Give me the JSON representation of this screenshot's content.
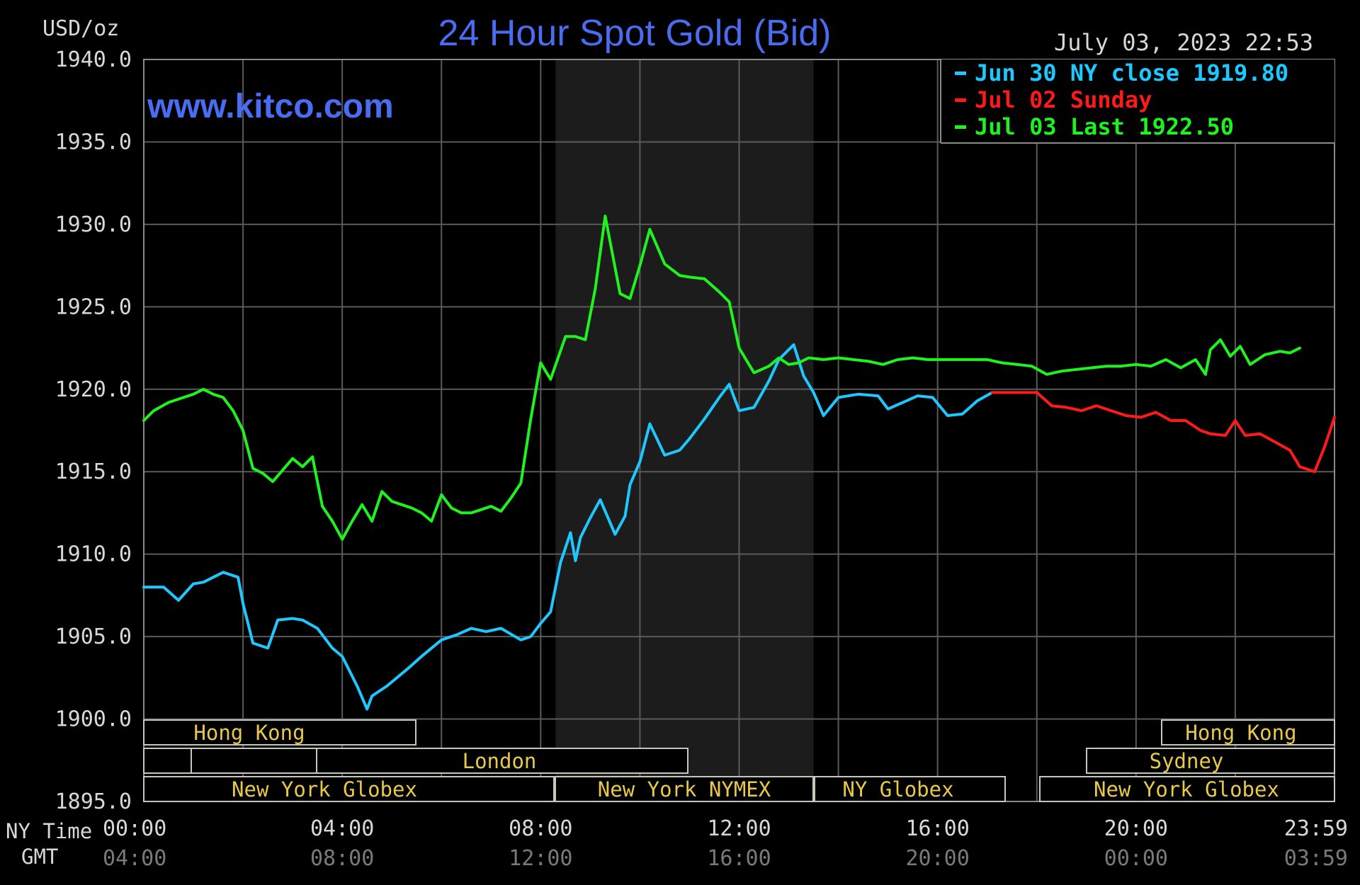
{
  "header": {
    "unit": "USD/oz",
    "title": "24 Hour Spot Gold (Bid)",
    "timestamp": "July 03, 2023 22:53",
    "watermark": "www.kitco.com"
  },
  "colors": {
    "background": "#000000",
    "grid": "#5a5a5a",
    "frame": "#8a8a8a",
    "nymex_shade": "#1c1c1c",
    "title": "#4a6cf0",
    "axis_text": "#d8d8d8",
    "gmt_text": "#7a7a7a",
    "session_text": "#e8c94a",
    "session_border": "#c8c8b8",
    "jun30": "#1ec8ff",
    "jul02": "#ff1a1a",
    "jul03": "#1ff21f"
  },
  "axis": {
    "y_ticks": [
      "1940.0",
      "1935.0",
      "1930.0",
      "1925.0",
      "1920.0",
      "1915.0",
      "1910.0",
      "1905.0",
      "1900.0",
      "1895.0"
    ],
    "x_row_labels": [
      "NY Time",
      "GMT"
    ],
    "ny_ticks": [
      "00:00",
      "04:00",
      "08:00",
      "12:00",
      "16:00",
      "20:00",
      "23:59"
    ],
    "gmt_ticks": [
      "04:00",
      "08:00",
      "12:00",
      "16:00",
      "20:00",
      "00:00",
      "03:59"
    ]
  },
  "legend": [
    {
      "label": "Jun 30 NY close 1919.80",
      "color": "#1ec8ff"
    },
    {
      "label": "Jul 02 Sunday",
      "color": "#ff1a1a"
    },
    {
      "label": "Jul 03 Last 1922.50",
      "color": "#1ff21f"
    }
  ],
  "sessions": {
    "hong_kong_1": "Hong Kong",
    "london": "London",
    "ny_globex_1": "New York Globex",
    "ny_nymex": "New York NYMEX",
    "ny_globex_2": "NY Globex",
    "hong_kong_2": "Hong Kong",
    "sydney": "Sydney",
    "ny_globex_3": "New York Globex"
  },
  "chart_data": {
    "type": "line",
    "xlim": [
      0,
      24
    ],
    "ylim": [
      1895,
      1940
    ],
    "ylabel": "USD/oz",
    "x_unit": "NY time (hours)",
    "nymex_session_hours": [
      8.3,
      13.5
    ],
    "series": [
      {
        "name": "Jun 30 NY close 1919.80",
        "color": "#1ec8ff",
        "x": [
          0.0,
          0.4,
          0.7,
          1.0,
          1.2,
          1.6,
          1.9,
          2.0,
          2.2,
          2.5,
          2.7,
          3.0,
          3.2,
          3.5,
          3.8,
          4.0,
          4.3,
          4.5,
          4.6,
          4.9,
          5.3,
          5.6,
          6.0,
          6.3,
          6.6,
          6.9,
          7.2,
          7.6,
          7.8,
          8.0,
          8.2,
          8.4,
          8.6,
          8.7,
          8.8,
          9.0,
          9.2,
          9.5,
          9.7,
          9.8,
          10.0,
          10.2,
          10.5,
          10.8,
          11.0,
          11.3,
          11.6,
          11.8,
          12.0,
          12.3,
          12.6,
          12.8,
          13.1,
          13.3,
          13.5,
          13.7,
          14.0,
          14.4,
          14.8,
          15.0,
          15.3,
          15.6,
          15.9,
          16.2,
          16.5,
          16.8,
          17.1
        ],
        "values": [
          1908.0,
          1908.0,
          1907.2,
          1908.2,
          1908.3,
          1908.9,
          1908.6,
          1907.0,
          1904.6,
          1904.3,
          1906.0,
          1906.1,
          1906.0,
          1905.5,
          1904.3,
          1903.8,
          1902.0,
          1900.6,
          1901.4,
          1902.0,
          1903.0,
          1903.8,
          1904.8,
          1905.1,
          1905.5,
          1905.3,
          1905.5,
          1904.8,
          1905.0,
          1905.8,
          1906.5,
          1909.5,
          1911.3,
          1909.6,
          1911.0,
          1912.2,
          1913.3,
          1911.2,
          1912.3,
          1914.2,
          1915.6,
          1917.9,
          1916.0,
          1916.3,
          1917.0,
          1918.2,
          1919.5,
          1920.3,
          1918.7,
          1918.9,
          1920.5,
          1921.8,
          1922.7,
          1920.8,
          1919.8,
          1918.4,
          1919.5,
          1919.7,
          1919.6,
          1918.8,
          1919.2,
          1919.6,
          1919.5,
          1918.4,
          1918.5,
          1919.3,
          1919.8
        ]
      },
      {
        "name": "Jul 02 Sunday",
        "color": "#ff1a1a",
        "x": [
          17.1,
          17.6,
          17.7,
          18.0,
          18.3,
          18.6,
          18.9,
          19.2,
          19.5,
          19.8,
          20.1,
          20.4,
          20.7,
          21.0,
          21.3,
          21.5,
          21.8,
          22.0,
          22.2,
          22.5,
          22.8,
          23.1,
          23.3,
          23.6,
          23.8,
          24.0
        ],
        "values": [
          1919.8,
          1919.8,
          1919.8,
          1919.8,
          1919.0,
          1918.9,
          1918.7,
          1919.0,
          1918.7,
          1918.4,
          1918.3,
          1918.6,
          1918.1,
          1918.1,
          1917.5,
          1917.3,
          1917.2,
          1918.1,
          1917.2,
          1917.3,
          1916.8,
          1916.3,
          1915.3,
          1915.0,
          1916.5,
          1918.3
        ]
      },
      {
        "name": "Jul 03 Last 1922.50",
        "color": "#1ff21f",
        "x": [
          0.0,
          0.2,
          0.5,
          0.8,
          1.0,
          1.2,
          1.4,
          1.6,
          1.8,
          2.0,
          2.2,
          2.4,
          2.6,
          2.8,
          3.0,
          3.2,
          3.4,
          3.6,
          3.8,
          4.0,
          4.2,
          4.4,
          4.6,
          4.8,
          5.0,
          5.2,
          5.4,
          5.6,
          5.8,
          6.0,
          6.2,
          6.4,
          6.6,
          6.8,
          7.0,
          7.2,
          7.4,
          7.6,
          7.8,
          8.0,
          8.2,
          8.5,
          8.7,
          8.9,
          9.1,
          9.3,
          9.6,
          9.8,
          10.0,
          10.2,
          10.5,
          10.8,
          11.0,
          11.3,
          11.6,
          11.8,
          12.0,
          12.3,
          12.6,
          12.8,
          13.0,
          13.2,
          13.4,
          13.7,
          14.0,
          14.3,
          14.6,
          14.9,
          15.2,
          15.5,
          15.8,
          16.1,
          16.4,
          16.7,
          17.0,
          17.3,
          17.6,
          17.9,
          18.2,
          18.5,
          18.8,
          19.1,
          19.4,
          19.7,
          20.0,
          20.3,
          20.6,
          20.9,
          21.2,
          21.4,
          21.5,
          21.7,
          21.9,
          22.1,
          22.3,
          22.6,
          22.9,
          23.1,
          23.3
        ],
        "values": [
          1918.1,
          1918.7,
          1919.2,
          1919.5,
          1919.7,
          1920.0,
          1919.7,
          1919.5,
          1918.7,
          1917.5,
          1915.2,
          1914.9,
          1914.4,
          1915.1,
          1915.8,
          1915.3,
          1915.9,
          1912.9,
          1912.0,
          1910.9,
          1912.0,
          1913.0,
          1912.0,
          1913.8,
          1913.2,
          1913.0,
          1912.8,
          1912.5,
          1912.0,
          1913.6,
          1912.8,
          1912.5,
          1912.5,
          1912.7,
          1912.9,
          1912.6,
          1913.4,
          1914.3,
          1918.2,
          1921.6,
          1920.6,
          1923.2,
          1923.2,
          1923.0,
          1926.1,
          1930.5,
          1925.8,
          1925.5,
          1927.5,
          1929.7,
          1927.6,
          1926.9,
          1926.8,
          1926.7,
          1925.9,
          1925.3,
          1922.5,
          1921.0,
          1921.4,
          1921.9,
          1921.5,
          1921.6,
          1921.9,
          1921.8,
          1921.9,
          1921.8,
          1921.7,
          1921.5,
          1921.8,
          1921.9,
          1921.8,
          1921.8,
          1921.8,
          1921.8,
          1921.8,
          1921.6,
          1921.5,
          1921.4,
          1920.9,
          1921.1,
          1921.2,
          1921.3,
          1921.4,
          1921.4,
          1921.5,
          1921.4,
          1921.8,
          1921.3,
          1921.8,
          1920.9,
          1922.4,
          1923.0,
          1922.0,
          1922.6,
          1921.5,
          1922.1,
          1922.3,
          1922.2,
          1922.5
        ]
      }
    ]
  }
}
